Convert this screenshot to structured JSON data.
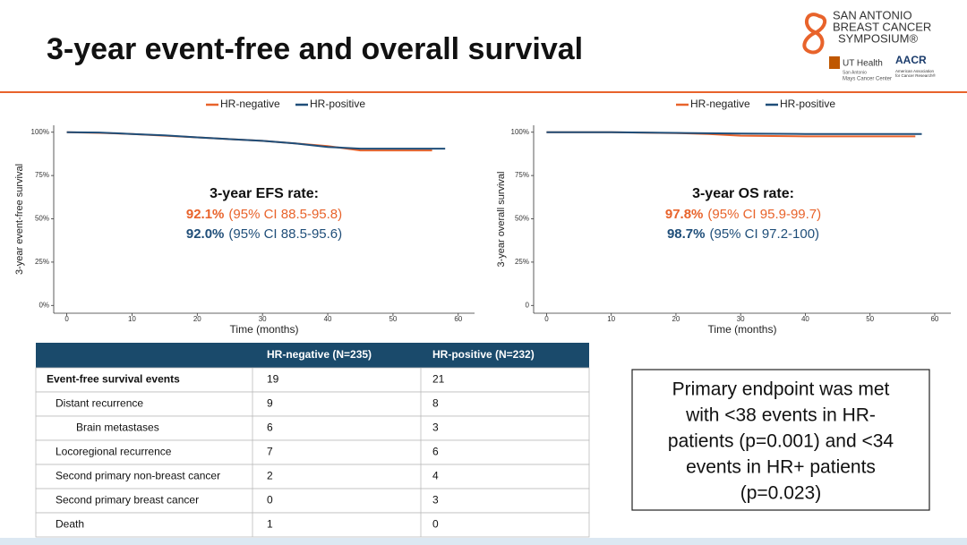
{
  "header": {
    "title": "3-year event-free and overall survival",
    "logo": {
      "lines": [
        "SAN ANTONIO",
        "BREAST CANCER",
        "SYMPOSIUM®"
      ],
      "ut": [
        "UT Health",
        "San Antonio",
        "Mays Cancer Center"
      ],
      "aacr": "AACR",
      "aacr_sub": [
        "American Association",
        "for Cancer Research®"
      ]
    }
  },
  "chart_data": [
    {
      "type": "line",
      "legend": "top",
      "y_label": "3-year event-free survival",
      "x_label": "Time (months)",
      "xlim": [
        -2,
        62.5
      ],
      "xticks": [
        0,
        10,
        20,
        30,
        40,
        50,
        60
      ],
      "ylim": [
        -4.5,
        104
      ],
      "yticks": [
        {
          "value": 0,
          "label": "0%"
        },
        {
          "value": 25,
          "label": "25%"
        },
        {
          "value": 50,
          "label": "50%"
        },
        {
          "value": 75,
          "label": "75%"
        },
        {
          "value": 100,
          "label": "100%"
        }
      ],
      "series": [
        {
          "name": "HR-negative",
          "color": "#e8632b",
          "x": [
            0,
            5,
            10,
            15,
            20,
            25,
            30,
            35,
            40,
            45,
            50,
            56
          ],
          "values": [
            100,
            99.6,
            99,
            98,
            97,
            96,
            95,
            93.5,
            92,
            89.5,
            89.5,
            89.5
          ]
        },
        {
          "name": "HR-positive",
          "color": "#1f4e79",
          "x": [
            0,
            5,
            10,
            15,
            20,
            25,
            30,
            35,
            40,
            45,
            50,
            58
          ],
          "values": [
            100,
            99.8,
            99,
            98.2,
            97,
            96,
            95,
            93.5,
            91.5,
            90.5,
            90.5,
            90.5
          ]
        }
      ],
      "annotation": {
        "title": "3-year EFS rate:",
        "lines": [
          {
            "value": "92.1%",
            "ci": "(95% CI 88.5-95.8)"
          },
          {
            "value": "92.0%",
            "ci": "(95% CI 88.5-95.6)"
          }
        ]
      }
    },
    {
      "type": "line",
      "legend": "top",
      "y_label": "3-year overall survival",
      "x_label": "Time (months)",
      "xlim": [
        -2,
        62.5
      ],
      "xticks": [
        0,
        10,
        20,
        30,
        40,
        50,
        60
      ],
      "ylim": [
        -4.5,
        104
      ],
      "yticks": [
        0,
        {
          "value": 25,
          "label": "25%"
        },
        {
          "value": 50,
          "label": "50%"
        },
        {
          "value": 75,
          "label": "75%"
        },
        {
          "value": 100,
          "label": "100%"
        }
      ],
      "series": [
        {
          "name": "HR-negative",
          "color": "#e8632b",
          "x": [
            0,
            10,
            20,
            25,
            30,
            35,
            40,
            45,
            50,
            57
          ],
          "values": [
            100,
            100,
            99.5,
            99,
            98,
            97.8,
            97.6,
            97.6,
            97.6,
            97.6
          ]
        },
        {
          "name": "HR-positive",
          "color": "#1f4e79",
          "x": [
            0,
            10,
            20,
            30,
            40,
            50,
            58
          ],
          "values": [
            100,
            100,
            99.6,
            99.2,
            99,
            99,
            99
          ]
        }
      ],
      "annotation": {
        "title": "3-year OS rate:",
        "lines": [
          {
            "value": "97.8%",
            "ci": "(95% CI 95.9-99.7)"
          },
          {
            "value": "98.7%",
            "ci": "(95% CI 97.2-100)"
          }
        ]
      }
    }
  ],
  "table": {
    "header": [
      "HR-negative (N=235)",
      "HR-positive (N=232)"
    ],
    "rows": [
      [
        "Event-free survival events",
        19,
        21
      ],
      [
        "Distant recurrence",
        9,
        8
      ],
      [
        "Brain metastases",
        6,
        3
      ],
      [
        "Locoregional recurrence",
        7,
        6
      ],
      [
        "Second primary non-breast cancer",
        2,
        4
      ],
      [
        "Second primary breast cancer",
        0,
        3
      ],
      [
        "Death",
        1,
        0
      ]
    ]
  },
  "endpoint_box": {
    "lines": [
      "Primary endpoint was met",
      "with <38 events in HR-",
      "patients (p=0.001) and <34",
      "events in HR+ patients",
      "(p=0.023)"
    ]
  }
}
